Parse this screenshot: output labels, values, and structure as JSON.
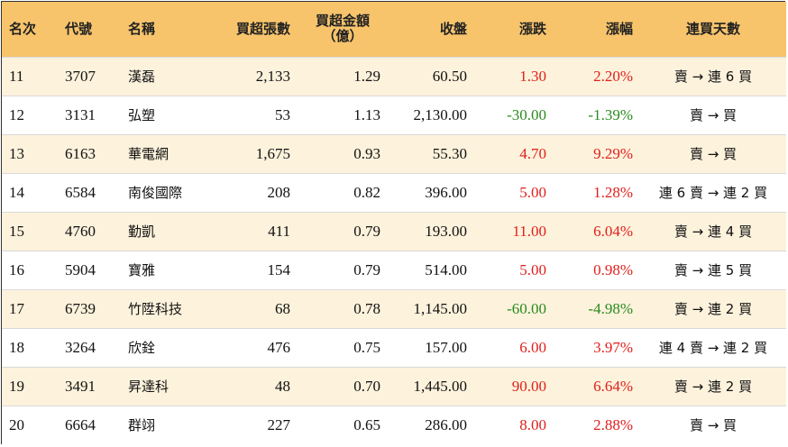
{
  "colors": {
    "header_bg": "#f7c46c",
    "row_alt_bg": "#fdf2dc",
    "up": "#e0201c",
    "down": "#2a8a1e"
  },
  "headers": {
    "rank": "名次",
    "code": "代號",
    "name": "名稱",
    "net_buy_lots": "買超張數",
    "net_buy_amount_line1": "買超金額",
    "net_buy_amount_line2": "（億）",
    "close": "收盤",
    "change": "漲跌",
    "change_pct": "漲幅",
    "streak": "連買天數"
  },
  "rows": [
    {
      "rank": "11",
      "code": "3707",
      "name": "漢磊",
      "lots": "2,133",
      "amount": "1.29",
      "close": "60.50",
      "change": "1.30",
      "pct": "2.20%",
      "dir": "up",
      "streak": "賣 → 連 6 買"
    },
    {
      "rank": "12",
      "code": "3131",
      "name": "弘塑",
      "lots": "53",
      "amount": "1.13",
      "close": "2,130.00",
      "change": "-30.00",
      "pct": "-1.39%",
      "dir": "down",
      "streak": "賣 → 買"
    },
    {
      "rank": "13",
      "code": "6163",
      "name": "華電網",
      "lots": "1,675",
      "amount": "0.93",
      "close": "55.30",
      "change": "4.70",
      "pct": "9.29%",
      "dir": "up",
      "streak": "賣 → 買"
    },
    {
      "rank": "14",
      "code": "6584",
      "name": "南俊國際",
      "lots": "208",
      "amount": "0.82",
      "close": "396.00",
      "change": "5.00",
      "pct": "1.28%",
      "dir": "up",
      "streak": "連 6 賣 → 連 2 買"
    },
    {
      "rank": "15",
      "code": "4760",
      "name": "勤凱",
      "lots": "411",
      "amount": "0.79",
      "close": "193.00",
      "change": "11.00",
      "pct": "6.04%",
      "dir": "up",
      "streak": "賣 → 連 4 買"
    },
    {
      "rank": "16",
      "code": "5904",
      "name": "寶雅",
      "lots": "154",
      "amount": "0.79",
      "close": "514.00",
      "change": "5.00",
      "pct": "0.98%",
      "dir": "up",
      "streak": "賣 → 連 5 買"
    },
    {
      "rank": "17",
      "code": "6739",
      "name": "竹陞科技",
      "lots": "68",
      "amount": "0.78",
      "close": "1,145.00",
      "change": "-60.00",
      "pct": "-4.98%",
      "dir": "down",
      "streak": "賣 → 連 2 買"
    },
    {
      "rank": "18",
      "code": "3264",
      "name": "欣銓",
      "lots": "476",
      "amount": "0.75",
      "close": "157.00",
      "change": "6.00",
      "pct": "3.97%",
      "dir": "up",
      "streak": "連 4 賣 → 連 2 買"
    },
    {
      "rank": "19",
      "code": "3491",
      "name": "昇達科",
      "lots": "48",
      "amount": "0.70",
      "close": "1,445.00",
      "change": "90.00",
      "pct": "6.64%",
      "dir": "up",
      "streak": "賣 → 連 2 買"
    },
    {
      "rank": "20",
      "code": "6664",
      "name": "群翊",
      "lots": "227",
      "amount": "0.65",
      "close": "286.00",
      "change": "8.00",
      "pct": "2.88%",
      "dir": "up",
      "streak": "賣 → 買"
    }
  ]
}
